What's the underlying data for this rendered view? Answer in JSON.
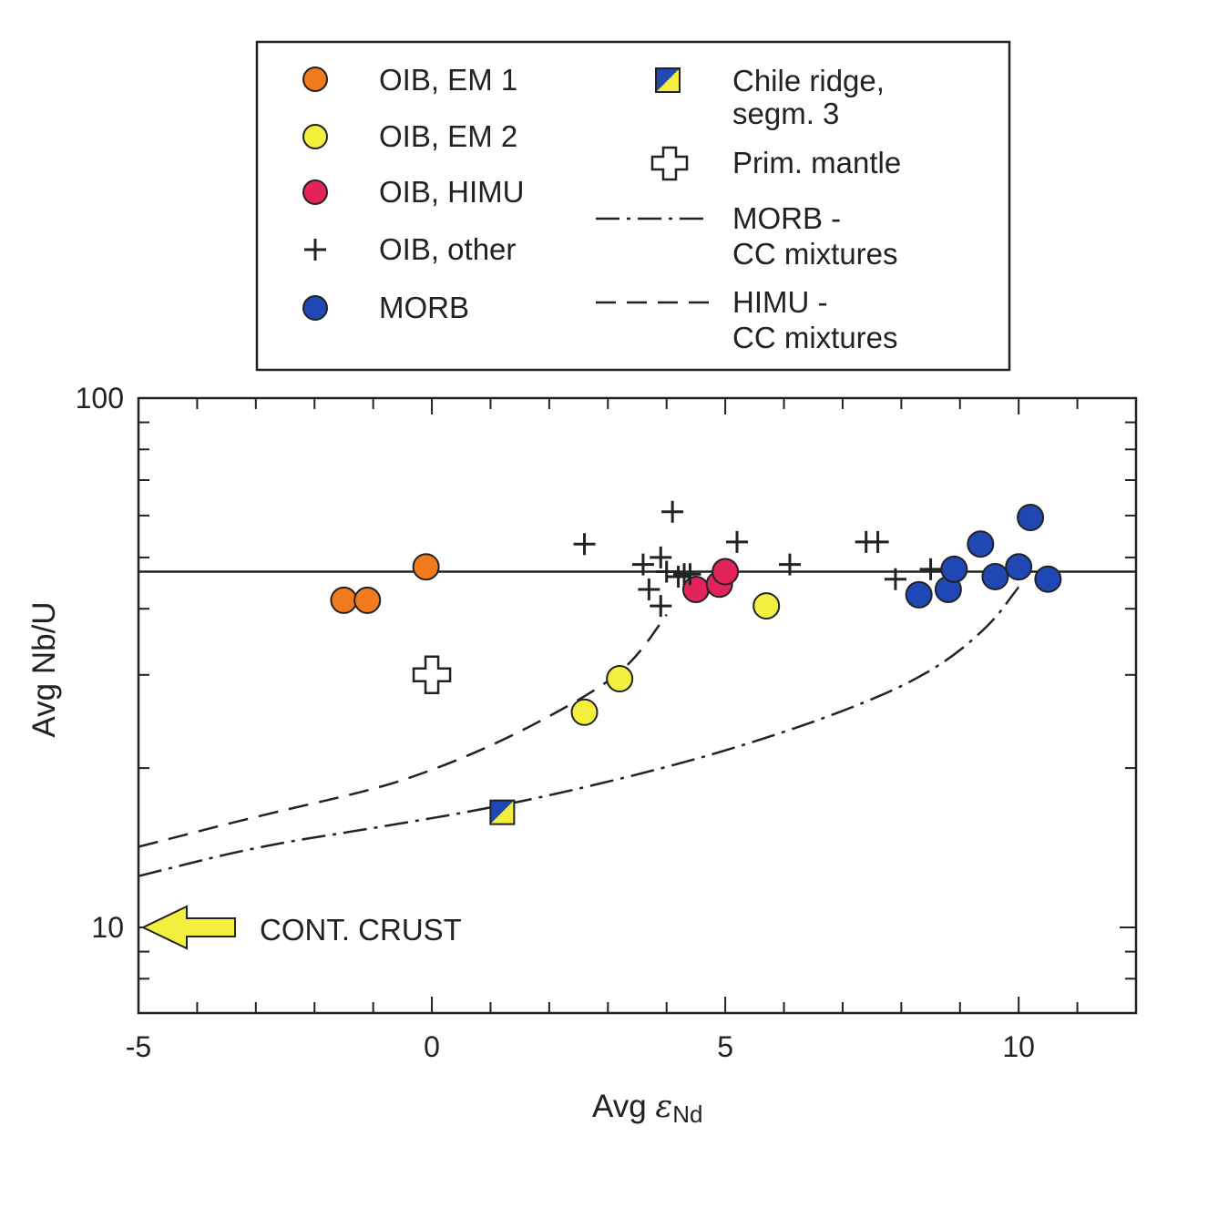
{
  "chart_data": {
    "type": "scatter",
    "xlabel": "Avg εNd",
    "xlabel_main": "Avg ",
    "xlabel_symbol": "ε",
    "xlabel_subscript": "Nd",
    "ylabel": "Avg Nb/U",
    "xlim": [
      -5,
      12
    ],
    "ylim": [
      8,
      100
    ],
    "y_scale": "log",
    "x_ticks": [
      -5,
      0,
      5,
      10
    ],
    "x_tick_labels": [
      "-5",
      "0",
      "5",
      "10"
    ],
    "y_ticks": [
      10,
      100
    ],
    "y_tick_labels": [
      "10",
      "100"
    ],
    "grid": false,
    "legend": "top",
    "annotation": "CONT. CRUST",
    "reference_line": {
      "y": 47
    },
    "series": [
      {
        "name": "OIB, EM 1",
        "marker": "circle",
        "color": "#f07a1e",
        "points": [
          [
            -1.5,
            41.5
          ],
          [
            -1.1,
            41.5
          ],
          [
            -0.1,
            48
          ]
        ]
      },
      {
        "name": "OIB, EM 2",
        "marker": "circle",
        "color": "#f4ee3c",
        "points": [
          [
            2.6,
            25.5
          ],
          [
            3.2,
            29.5
          ],
          [
            5.7,
            40.5
          ]
        ]
      },
      {
        "name": "OIB, HIMU",
        "marker": "circle",
        "color": "#e3245a",
        "points": [
          [
            4.5,
            43.5
          ],
          [
            4.9,
            44.5
          ],
          [
            5.0,
            47
          ]
        ]
      },
      {
        "name": "OIB, other",
        "marker": "plus",
        "color": "#222222",
        "points": [
          [
            2.6,
            53
          ],
          [
            3.6,
            48.5
          ],
          [
            3.7,
            43.5
          ],
          [
            3.9,
            50
          ],
          [
            3.9,
            40.5
          ],
          [
            4.0,
            47
          ],
          [
            4.1,
            61
          ],
          [
            4.2,
            46
          ],
          [
            4.3,
            46.5
          ],
          [
            4.4,
            46.5
          ],
          [
            5.2,
            53.5
          ],
          [
            6.1,
            48.5
          ],
          [
            7.4,
            53.5
          ],
          [
            7.6,
            53.5
          ],
          [
            7.9,
            45.5
          ],
          [
            8.5,
            47.5
          ]
        ]
      },
      {
        "name": "MORB",
        "marker": "circle",
        "color": "#1f48b5",
        "points": [
          [
            8.3,
            42.5
          ],
          [
            8.8,
            43.5
          ],
          [
            8.9,
            47.5
          ],
          [
            9.35,
            53
          ],
          [
            9.6,
            46
          ],
          [
            10.0,
            48
          ],
          [
            10.2,
            59.5
          ],
          [
            10.5,
            45.5
          ]
        ]
      },
      {
        "name": "Chile ridge, segm. 3",
        "marker": "square-split",
        "color": "#f4ee3c",
        "color2": "#1f48b5",
        "points": [
          [
            1.2,
            16.5
          ]
        ]
      },
      {
        "name": "Prim. mantle",
        "marker": "open-cross",
        "color": "#ffffff",
        "points": [
          [
            0,
            30
          ]
        ]
      }
    ],
    "curves": [
      {
        "name": "MORB - CC mixtures",
        "style": "dash-dot",
        "points": [
          [
            -5,
            12.5
          ],
          [
            -3,
            14.2
          ],
          [
            -1,
            15.4
          ],
          [
            1,
            16.8
          ],
          [
            3,
            18.8
          ],
          [
            5,
            21.5
          ],
          [
            7,
            25.5
          ],
          [
            8.5,
            30.2
          ],
          [
            9.5,
            37
          ],
          [
            10,
            44
          ]
        ]
      },
      {
        "name": "HIMU - CC mixtures",
        "style": "dashed",
        "points": [
          [
            -5,
            14.2
          ],
          [
            -3,
            16.2
          ],
          [
            -1,
            18.2
          ],
          [
            0,
            19.8
          ],
          [
            1,
            22
          ],
          [
            2,
            25
          ],
          [
            3,
            29
          ],
          [
            3.5,
            32.5
          ],
          [
            4,
            39
          ]
        ]
      }
    ]
  },
  "legend": {
    "items": [
      {
        "label": "OIB, EM 1"
      },
      {
        "label": "OIB, EM 2"
      },
      {
        "label": "OIB, HIMU"
      },
      {
        "label": "OIB, other"
      },
      {
        "label": "MORB"
      },
      {
        "label_line1": "Chile ridge,",
        "label_line2": "segm. 3"
      },
      {
        "label": "Prim. mantle"
      },
      {
        "label_line1": "MORB -",
        "label_line2": "CC mixtures"
      },
      {
        "label_line1": "HIMU -",
        "label_line2": "CC mixtures"
      }
    ]
  }
}
